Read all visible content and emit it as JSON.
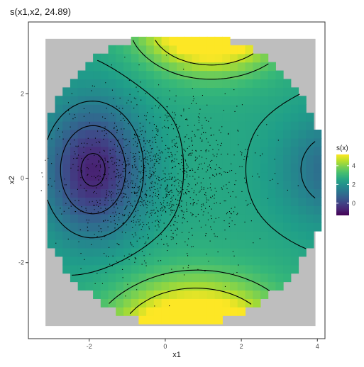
{
  "chart_data": {
    "type": "heatmap",
    "title": "s(x1,x2, 24.89)",
    "xlabel": "x1",
    "ylabel": "x2",
    "x_ticks": [
      -2,
      0,
      2,
      4
    ],
    "y_ticks": [
      -2,
      0,
      2
    ],
    "xlim": [
      -3.6,
      4.2
    ],
    "ylim": [
      -3.8,
      3.7
    ],
    "grid": false,
    "colormap": "viridis",
    "na_color": "#bebebe",
    "legend": {
      "title": "s(x)",
      "ticks": [
        0,
        2,
        4
      ],
      "range": [
        -1.3,
        5.2
      ],
      "placement": "right"
    },
    "surface": {
      "description_terms": [
        {
          "center": [
            -1.9,
            0.2
          ],
          "sigma": [
            0.9,
            1.1
          ],
          "amplitude": -3.3
        },
        {
          "center": [
            1.2,
            3.6
          ],
          "sigma": [
            1.2,
            0.7
          ],
          "amplitude": 4.5
        },
        {
          "center": [
            0.8,
            -3.8
          ],
          "sigma": [
            1.5,
            0.9
          ],
          "amplitude": 4.6
        },
        {
          "center": [
            4.5,
            0.2
          ],
          "sigma": [
            1.0,
            0.9
          ],
          "amplitude": -1.7
        }
      ],
      "base": 2.6
    }
  }
}
